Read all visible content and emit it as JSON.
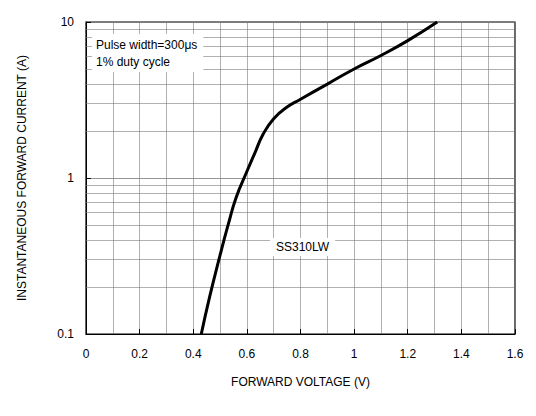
{
  "chart_data": {
    "type": "line",
    "x_label": "FORWARD VOLTAGE (V)",
    "y_label": "INSTANTANEOUS FORWARD CURRENT (A)",
    "annotations": [
      "Pulse width=300μs",
      "1% duty cycle",
      "SS310LW"
    ],
    "series": [
      {
        "name": "SS310LW",
        "color": "#000000",
        "x": [
          0.43,
          0.46,
          0.5,
          0.53,
          0.56,
          0.6,
          0.63,
          0.66,
          0.7,
          0.75,
          0.8,
          0.9,
          1.0,
          1.1,
          1.2,
          1.31
        ],
        "values": [
          0.1,
          0.17,
          0.32,
          0.5,
          0.75,
          1.1,
          1.45,
          1.9,
          2.4,
          2.85,
          3.2,
          4.0,
          5.0,
          6.1,
          7.6,
          10
        ]
      }
    ],
    "xlim": [
      0,
      1.6
    ],
    "xticks": [
      0,
      0.2,
      0.4,
      0.6,
      0.8,
      1,
      1.2,
      1.4,
      1.6
    ],
    "ylim": [
      0.1,
      10
    ],
    "yticks": [
      0.1,
      1,
      10
    ],
    "log": "y",
    "grid": true
  }
}
